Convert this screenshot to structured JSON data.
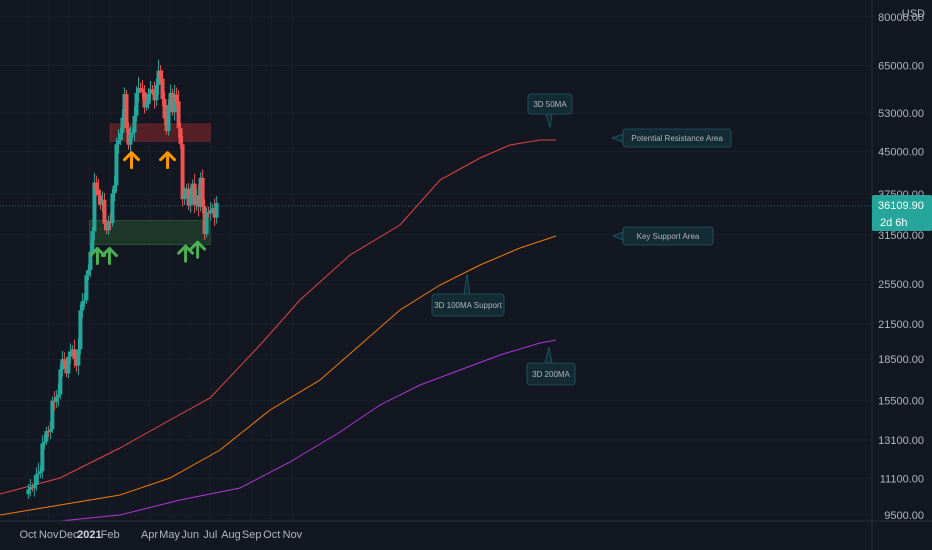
{
  "header": {
    "currency": "USD"
  },
  "current_price": {
    "value": "36109.90",
    "countdown": "2d 6h"
  },
  "colors": {
    "background": "#131722",
    "up": "#26a69a",
    "down": "#ef5350",
    "ma50": "#e0453f",
    "ma100": "#f57c00",
    "ma200": "#b136d9",
    "resistance_fill": "#5c2226",
    "support_fill": "#1e3b2a",
    "arrow_orange": "#ff9800",
    "arrow_green": "#4caf50",
    "callout_bg": "#142b33",
    "callout_border": "#1f5b66",
    "price_tag": "#26a69a"
  },
  "chart_data": {
    "type": "candlestick",
    "y_scale": "log",
    "ylim": [
      9300,
      86000
    ],
    "x_range": [
      "2020-10-01",
      "2021-11-01"
    ],
    "y_ticks": [
      "80000.00",
      "65000.00",
      "53000.00",
      "45000.00",
      "37500.00",
      "31500.00",
      "25500.00",
      "21500.00",
      "18500.00",
      "15500.00",
      "13100.00",
      "11100.00",
      "9500.00"
    ],
    "x_ticks": [
      {
        "label": "Oct",
        "date": "2020-10-01",
        "bold": false
      },
      {
        "label": "Nov",
        "date": "2020-11-01",
        "bold": false
      },
      {
        "label": "Dec",
        "date": "2020-12-01",
        "bold": false
      },
      {
        "label": "2021",
        "date": "2021-01-01",
        "bold": true
      },
      {
        "label": "Feb",
        "date": "2021-02-01",
        "bold": false
      },
      {
        "label": "Apr",
        "date": "2021-04-01",
        "bold": false
      },
      {
        "label": "May",
        "date": "2021-05-01",
        "bold": false
      },
      {
        "label": "Jun",
        "date": "2021-06-01",
        "bold": false
      },
      {
        "label": "Jul",
        "date": "2021-07-01",
        "bold": false
      },
      {
        "label": "Aug",
        "date": "2021-08-01",
        "bold": false
      },
      {
        "label": "Sep",
        "date": "2021-09-01",
        "bold": false
      },
      {
        "label": "Oct",
        "date": "2021-10-01",
        "bold": false
      },
      {
        "label": "Nov",
        "date": "2021-11-01",
        "bold": false
      }
    ],
    "candle_step_days": 3,
    "closes": [
      [
        "2020-09-30",
        10600
      ],
      [
        "2020-10-03",
        10700
      ],
      [
        "2020-10-06",
        10650
      ],
      [
        "2020-10-09",
        10800
      ],
      [
        "2020-10-12",
        11300
      ],
      [
        "2020-10-15",
        11350
      ],
      [
        "2020-10-18",
        11450
      ],
      [
        "2020-10-21",
        12900
      ],
      [
        "2020-10-24",
        13000
      ],
      [
        "2020-10-27",
        13600
      ],
      [
        "2020-10-30",
        13550
      ],
      [
        "2020-11-02",
        13700
      ],
      [
        "2020-11-05",
        15500
      ],
      [
        "2020-11-08",
        15400
      ],
      [
        "2020-11-11",
        15750
      ],
      [
        "2020-11-14",
        15900
      ],
      [
        "2020-11-17",
        17700
      ],
      [
        "2020-11-20",
        18500
      ],
      [
        "2020-11-23",
        18300
      ],
      [
        "2020-11-26",
        17400
      ],
      [
        "2020-11-29",
        18700
      ],
      [
        "2020-12-02",
        19100
      ],
      [
        "2020-12-05",
        19300
      ],
      [
        "2020-12-08",
        18500
      ],
      [
        "2020-12-11",
        18000
      ],
      [
        "2020-12-14",
        19300
      ],
      [
        "2020-12-17",
        22800
      ],
      [
        "2020-12-20",
        23700
      ],
      [
        "2020-12-23",
        23800
      ],
      [
        "2020-12-26",
        26500
      ],
      [
        "2020-12-29",
        27100
      ],
      [
        "2021-01-01",
        29300
      ],
      [
        "2021-01-04",
        32000
      ],
      [
        "2021-01-07",
        39400
      ],
      [
        "2021-01-10",
        38200
      ],
      [
        "2021-01-13",
        37300
      ],
      [
        "2021-01-16",
        35800
      ],
      [
        "2021-01-19",
        36600
      ],
      [
        "2021-01-22",
        33000
      ],
      [
        "2021-01-25",
        32100
      ],
      [
        "2021-01-28",
        33400
      ],
      [
        "2021-01-31",
        33100
      ],
      [
        "2021-02-03",
        37600
      ],
      [
        "2021-02-06",
        38900
      ],
      [
        "2021-02-09",
        46400
      ],
      [
        "2021-02-12",
        47200
      ],
      [
        "2021-02-15",
        48700
      ],
      [
        "2021-02-18",
        52000
      ],
      [
        "2021-02-21",
        57500
      ],
      [
        "2021-02-24",
        49700
      ],
      [
        "2021-02-27",
        46300
      ],
      [
        "2021-03-02",
        48400
      ],
      [
        "2021-03-05",
        48800
      ],
      [
        "2021-03-08",
        52400
      ],
      [
        "2021-03-11",
        57800
      ],
      [
        "2021-03-14",
        59000
      ],
      [
        "2021-03-17",
        58900
      ],
      [
        "2021-03-20",
        58000
      ],
      [
        "2021-03-23",
        54300
      ],
      [
        "2021-03-26",
        55100
      ],
      [
        "2021-03-29",
        57600
      ],
      [
        "2021-04-01",
        58700
      ],
      [
        "2021-04-04",
        58200
      ],
      [
        "2021-04-07",
        56000
      ],
      [
        "2021-04-10",
        59800
      ],
      [
        "2021-04-13",
        63600
      ],
      [
        "2021-04-16",
        61500
      ],
      [
        "2021-04-19",
        56300
      ],
      [
        "2021-04-22",
        51800
      ],
      [
        "2021-04-25",
        49100
      ],
      [
        "2021-04-28",
        54900
      ],
      [
        "2021-05-01",
        57800
      ],
      [
        "2021-05-04",
        53200
      ],
      [
        "2021-05-07",
        57400
      ],
      [
        "2021-05-10",
        55800
      ],
      [
        "2021-05-13",
        49700
      ],
      [
        "2021-05-16",
        46400
      ],
      [
        "2021-05-19",
        36700
      ],
      [
        "2021-05-22",
        37500
      ],
      [
        "2021-05-25",
        38400
      ],
      [
        "2021-05-28",
        35700
      ],
      [
        "2021-05-31",
        37300
      ],
      [
        "2021-06-03",
        39200
      ],
      [
        "2021-06-06",
        35800
      ],
      [
        "2021-06-09",
        37300
      ],
      [
        "2021-06-12",
        35500
      ],
      [
        "2021-06-15",
        40200
      ],
      [
        "2021-06-18",
        35600
      ],
      [
        "2021-06-21",
        31600
      ],
      [
        "2021-06-24",
        34700
      ],
      [
        "2021-06-27",
        34500
      ],
      [
        "2021-06-30",
        35000
      ],
      [
        "2021-07-03",
        35300
      ],
      [
        "2021-07-06",
        33900
      ],
      [
        "2021-07-09",
        36109.9
      ]
    ],
    "series": [
      {
        "name": "3D 50MA"
      },
      {
        "name": "3D 100MA Support"
      },
      {
        "name": "3D 200MA"
      }
    ],
    "zones": [
      {
        "name": "Potential Resistance Area",
        "from": "2021-02-01",
        "to": "2021-07-01",
        "low": 47000,
        "high": 50600
      },
      {
        "name": "Key Support Area",
        "from": "2021-01-01",
        "to": "2021-07-01",
        "low": 30200,
        "high": 33500
      }
    ],
    "annotations": [
      {
        "text": "3D 50MA"
      },
      {
        "text": "Potential Resistance Area"
      },
      {
        "text": "Key Support Area"
      },
      {
        "text": "3D 100MA Support"
      },
      {
        "text": "3D 200MA"
      }
    ],
    "arrows": [
      {
        "color": "green",
        "date": "2021-01-13",
        "price": 29200
      },
      {
        "color": "green",
        "date": "2021-01-31",
        "price": 29200
      },
      {
        "color": "orange",
        "date": "2021-03-05",
        "price": 44000
      },
      {
        "color": "orange",
        "date": "2021-04-28",
        "price": 44000
      },
      {
        "color": "green",
        "date": "2021-05-25",
        "price": 29500
      },
      {
        "color": "green",
        "date": "2021-06-12",
        "price": 30000
      }
    ]
  }
}
